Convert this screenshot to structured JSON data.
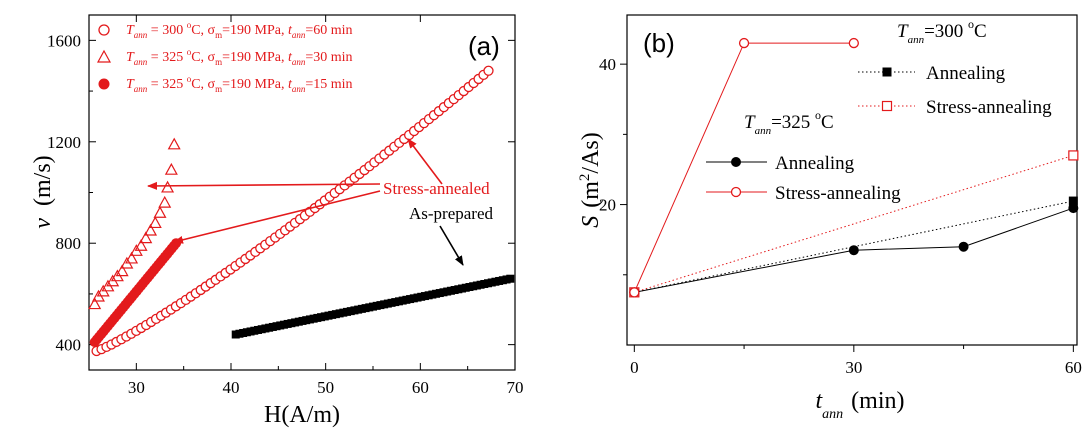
{
  "chart_data": [
    {
      "type": "scatter",
      "panel_label": "(a)",
      "xlabel": "H(A/m)",
      "ylabel_sym": "v",
      "ylabel_unit": "(m/s)",
      "xlim": [
        25,
        70
      ],
      "ylim": [
        300,
        1700
      ],
      "xticks": [
        "30",
        "40",
        "50",
        "60",
        "70"
      ],
      "yticks": [
        "400",
        "800",
        "1200",
        "1600"
      ],
      "xtick_values": [
        30,
        40,
        50,
        60,
        70
      ],
      "ytick_values": [
        400,
        800,
        1200,
        1600
      ],
      "legend": [
        {
          "T": "T",
          "Tsub": "ann",
          "Tval": " = 300 ",
          "Tunit": "C, ",
          "sigma": "σ",
          "sigmasub": "m",
          "sigmaval": "=190 MPa, ",
          "t": "t",
          "tsub": "ann",
          "tval": "=60 min",
          "marker": "open-circle"
        },
        {
          "T": "T",
          "Tsub": "ann",
          "Tval": " = 325 ",
          "Tunit": "C, ",
          "sigma": "σ",
          "sigmasub": "m",
          "sigmaval": "=190 MPa, ",
          "t": "t",
          "tsub": "ann",
          "tval": "=30 min",
          "marker": "open-triangle"
        },
        {
          "T": "T",
          "Tsub": "ann",
          "Tval": " = 325 ",
          "Tunit": "C, ",
          "sigma": "σ",
          "sigmasub": "m",
          "sigmaval": "=190 MPa, ",
          "t": "t",
          "tsub": "ann",
          "tval": "=15 min",
          "marker": "filled-circle"
        }
      ],
      "annotations": [
        {
          "text": "Stress-annealed",
          "color": "#e31a1c"
        },
        {
          "text": "As-prepared",
          "color": "#000000"
        }
      ],
      "series": [
        {
          "marker": "open-circle",
          "color": "#e31a1c",
          "x_start": 25.8,
          "x_end": 67.2,
          "y_start": 375,
          "y_end": 1480,
          "count": 80
        },
        {
          "marker": "open-triangle",
          "color": "#e31a1c",
          "x": [
            25.6,
            26.0,
            26.5,
            27.0,
            27.5,
            28.0,
            28.5,
            29.0,
            29.5,
            30.0,
            30.5,
            31.0,
            31.5,
            32.0,
            32.5,
            33.0,
            33.3,
            33.7,
            34.0
          ],
          "y": [
            560,
            590,
            610,
            630,
            650,
            670,
            690,
            720,
            740,
            770,
            790,
            820,
            850,
            880,
            920,
            960,
            1020,
            1090,
            1190
          ]
        },
        {
          "marker": "filled-circle",
          "color": "#e31a1c",
          "x_start": 25.6,
          "x_end": 34.2,
          "y_start": 410,
          "y_end": 800,
          "count": 38
        },
        {
          "marker": "filled-square",
          "color": "#000000",
          "x_start": 40.5,
          "x_end": 69.5,
          "y_start": 440,
          "y_end": 660,
          "count": 75
        }
      ]
    },
    {
      "type": "line",
      "panel_label": "(b)",
      "xlabel_sym": "t",
      "xlabel_sub": "ann",
      "xlabel_unit": "(min)",
      "ylabel_sym": "S",
      "ylabel_unit": "(m",
      "ylabel_sup": "2",
      "ylabel_end": "/As)",
      "xlim": [
        -1,
        60.5
      ],
      "ylim": [
        0,
        47
      ],
      "xticks": [
        "0",
        "30",
        "60"
      ],
      "yticks": [
        "20",
        "40"
      ],
      "xtick_values": [
        0,
        30,
        60
      ],
      "ytick_values": [
        20,
        40
      ],
      "legend_groups": [
        {
          "T": "T",
          "Tsub": "ann",
          "Tval": "=300 ",
          "Tunit": "C",
          "items": [
            {
              "label": "Annealing",
              "style": "dotted-black-filled-square"
            },
            {
              "label": "Stress-annealing",
              "style": "dotted-red-open-square"
            }
          ]
        },
        {
          "T": "T",
          "Tsub": "ann",
          "Tval": "=325 ",
          "Tunit": "C",
          "items": [
            {
              "label": "Annealing",
              "style": "solid-black-filled-circle"
            },
            {
              "label": "Stress-annealing",
              "style": "solid-red-open-circle"
            }
          ]
        }
      ],
      "series": [
        {
          "group": "300C",
          "label": "Annealing",
          "color": "#000000",
          "dash": "dotted",
          "marker": "filled-square",
          "x": [
            0,
            60
          ],
          "y": [
            7.5,
            20.5
          ]
        },
        {
          "group": "300C",
          "label": "Stress-annealing",
          "color": "#e31a1c",
          "dash": "dotted",
          "marker": "open-square",
          "x": [
            0,
            60
          ],
          "y": [
            7.5,
            27
          ]
        },
        {
          "group": "325C",
          "label": "Annealing",
          "color": "#000000",
          "dash": "solid",
          "marker": "filled-circle",
          "x": [
            0,
            30,
            45,
            60
          ],
          "y": [
            7.5,
            13.5,
            14,
            19.5
          ]
        },
        {
          "group": "325C",
          "label": "Stress-annealing",
          "color": "#e31a1c",
          "dash": "solid",
          "marker": "open-circle",
          "x": [
            0,
            15,
            30
          ],
          "y": [
            7.5,
            43,
            43
          ]
        }
      ]
    }
  ]
}
